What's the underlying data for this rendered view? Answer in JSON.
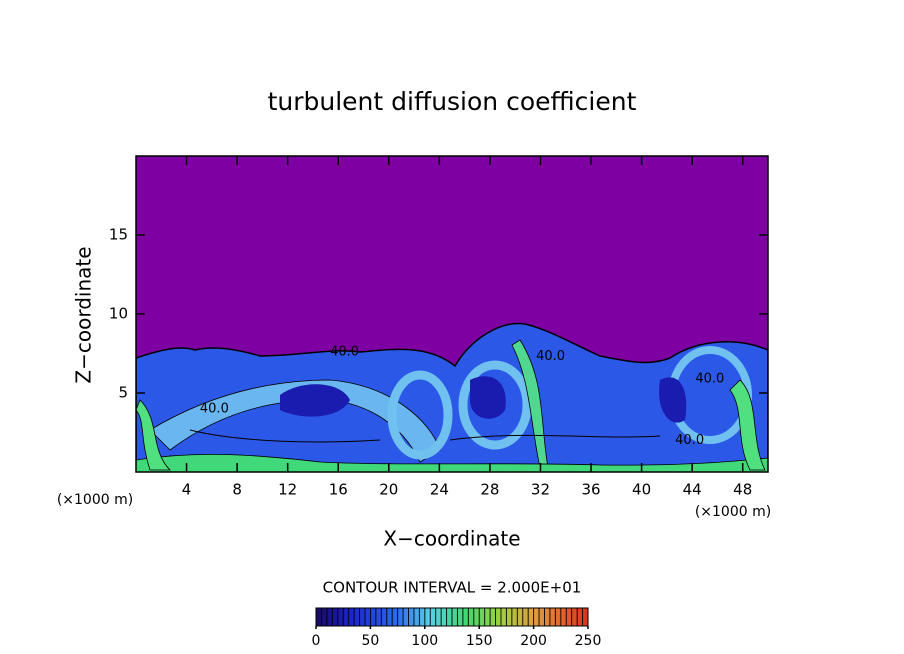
{
  "chart_data": {
    "type": "contour",
    "title": "turbulent diffusion coefficient",
    "x_label": "X−coordinate",
    "y_label": "Z−coordinate",
    "x_unit": "(×1000 m)",
    "y_unit": "(×1000 m)",
    "xlim": [
      0,
      50
    ],
    "ylim": [
      0,
      20
    ],
    "xticks": [
      4,
      8,
      12,
      16,
      20,
      24,
      28,
      32,
      36,
      40,
      44,
      48
    ],
    "yticks": [
      5,
      10,
      15
    ],
    "contour_labels": [
      {
        "text": "40.0",
        "x": 16.5,
        "y": 7.6
      },
      {
        "text": "40.0",
        "x": 32.8,
        "y": 7.3
      },
      {
        "text": "40.0",
        "x": 45.4,
        "y": 5.9
      },
      {
        "text": "40.0",
        "x": 6.2,
        "y": 4.0
      },
      {
        "text": "40.0",
        "x": 43.8,
        "y": 2.0
      }
    ],
    "colorbar": {
      "label": "CONTOUR INTERVAL = 2.000E+01",
      "lim": [
        0,
        250
      ],
      "ticks": [
        0,
        50,
        100,
        150,
        200,
        250
      ]
    }
  }
}
